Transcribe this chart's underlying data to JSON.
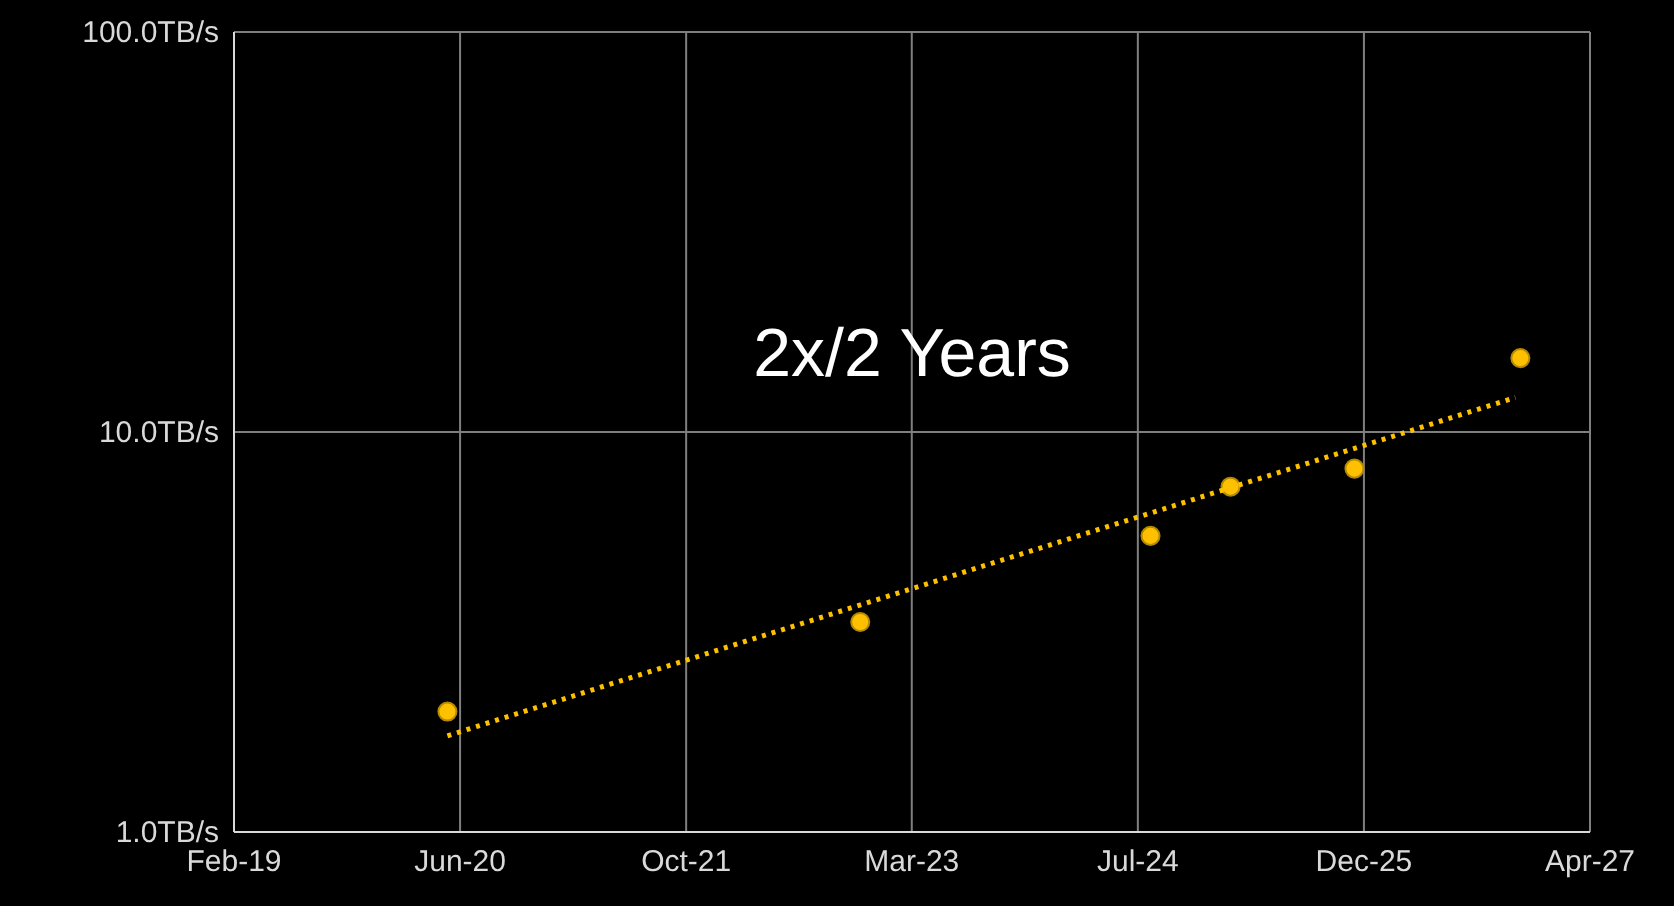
{
  "chart_data": {
    "type": "scatter",
    "annotations": [
      "2x/2 Years"
    ],
    "xlim": [
      "2019-02-01",
      "2027-04-19"
    ],
    "xticks": [
      {
        "value": "2019-02-01",
        "label": "Feb-19"
      },
      {
        "value": "2020-06-15",
        "label": "Jun-20"
      },
      {
        "value": "2021-10-28",
        "label": "Oct-21"
      },
      {
        "value": "2023-03-11",
        "label": "Mar-23"
      },
      {
        "value": "2024-07-23",
        "label": "Jul-24"
      },
      {
        "value": "2025-12-05",
        "label": "Dec-25"
      },
      {
        "value": "2027-04-19",
        "label": "Apr-27"
      }
    ],
    "ylim": [
      1,
      100
    ],
    "yticks": [
      {
        "value": 1,
        "label": "1.0TB/s"
      },
      {
        "value": 10,
        "label": "10.0TB/s"
      },
      {
        "value": 100,
        "label": "100.0TB/s"
      }
    ],
    "log": "y",
    "grid": true,
    "series": [
      {
        "type": "scatter",
        "color": "#ffc000",
        "marker": "circle",
        "x": [
          "2020-05-18",
          "2022-11-17",
          "2024-08-20",
          "2025-02-13",
          "2025-11-14",
          "2026-11-16"
        ],
        "values": [
          2.0,
          3.35,
          5.5,
          7.3,
          8.1,
          15.3
        ]
      },
      {
        "type": "line",
        "color": "#ffc000",
        "marker": "none",
        "line_style": "dotted",
        "x": [
          "2020-05-18",
          "2026-11-05"
        ],
        "values": [
          1.74,
          12.2
        ]
      }
    ]
  }
}
